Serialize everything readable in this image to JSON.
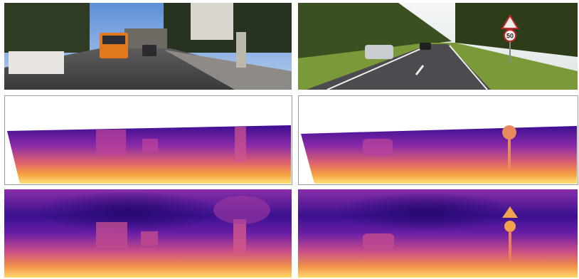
{
  "scene_right": {
    "sign_text": "50"
  }
}
